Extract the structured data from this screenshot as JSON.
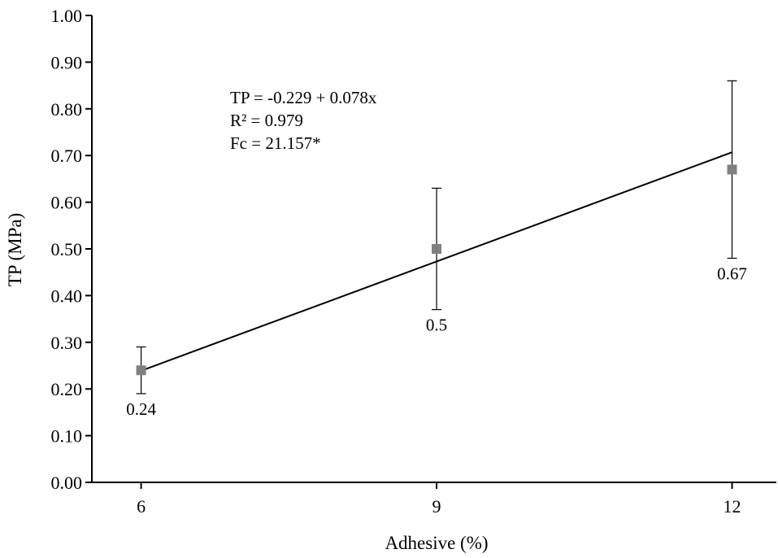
{
  "chart_data": {
    "type": "scatter",
    "x": [
      6,
      9,
      12
    ],
    "series": [
      {
        "values": [
          0.24,
          0.5,
          0.67
        ],
        "error_low": [
          0.19,
          0.37,
          0.48
        ],
        "error_high": [
          0.29,
          0.63,
          0.86
        ],
        "data_labels": [
          "0.24",
          "0.5",
          "0.67"
        ],
        "marker": "square",
        "color": "#808080"
      }
    ],
    "fit_line": {
      "intercept": -0.229,
      "slope": 0.078,
      "color": "#000000"
    },
    "annotations": [
      "TP = -0.229 + 0.078x",
      "R² = 0.979",
      "Fc = 21.157*"
    ],
    "xlabel": "Adhesive (%)",
    "ylabel": "TP (MPa)",
    "x_ticks": [
      6,
      9,
      12
    ],
    "x_tick_labels": [
      "6",
      "9",
      "12"
    ],
    "xlim": [
      5.5,
      12.45
    ],
    "y_ticks": [
      0,
      0.1,
      0.2,
      0.3,
      0.4,
      0.5,
      0.6,
      0.7,
      0.8,
      0.9,
      1.0
    ],
    "y_tick_labels": [
      "0.00",
      "0.10",
      "0.20",
      "0.30",
      "0.40",
      "0.50",
      "0.60",
      "0.70",
      "0.80",
      "0.90",
      "1.00"
    ],
    "ylim": [
      0,
      1.0
    ],
    "grid": false,
    "legend": "none"
  }
}
